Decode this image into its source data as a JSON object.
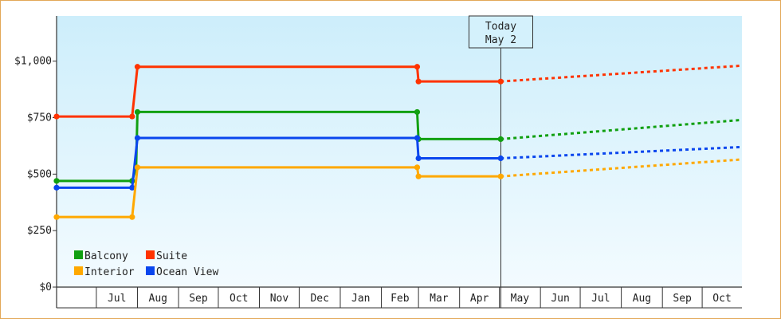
{
  "chart_data": {
    "type": "line",
    "step": true,
    "x_axis": {
      "months": [
        "Jul",
        "Aug",
        "Sep",
        "Oct",
        "Nov",
        "Dec",
        "Jan",
        "Feb",
        "Mar",
        "Apr",
        "May",
        "Jun",
        "Jul",
        "Aug",
        "Sep",
        "Oct"
      ],
      "start": "2024-06-01",
      "end": "2025-10-31"
    },
    "y_axis": {
      "ylim": [
        0,
        1200
      ],
      "ticks": [
        0,
        250,
        500,
        750,
        1000
      ],
      "tick_labels": [
        "$0",
        "$250",
        "$500",
        "$750",
        "$1,000"
      ]
    },
    "today": {
      "line1": "Today",
      "line2": "May 2",
      "date": "2025-05-02"
    },
    "series": [
      {
        "name": "Suite",
        "color": "#ff3300",
        "points": [
          [
            "2024-06-01",
            755
          ],
          [
            "2024-07-28",
            755
          ],
          [
            "2024-08-01",
            975
          ],
          [
            "2025-02-28",
            975
          ],
          [
            "2025-03-01",
            910
          ],
          [
            "2025-05-02",
            910
          ]
        ],
        "forecast": [
          [
            "2025-05-02",
            910
          ],
          [
            "2025-10-31",
            980
          ]
        ]
      },
      {
        "name": "Balcony",
        "color": "#11a011",
        "points": [
          [
            "2024-06-01",
            470
          ],
          [
            "2024-07-28",
            470
          ],
          [
            "2024-07-31",
            530
          ],
          [
            "2024-08-01",
            775
          ],
          [
            "2025-02-28",
            775
          ],
          [
            "2025-03-01",
            655
          ],
          [
            "2025-05-02",
            655
          ]
        ],
        "forecast": [
          [
            "2025-05-02",
            655
          ],
          [
            "2025-10-31",
            740
          ]
        ]
      },
      {
        "name": "Ocean View",
        "color": "#0a46ee",
        "points": [
          [
            "2024-06-01",
            440
          ],
          [
            "2024-07-28",
            440
          ],
          [
            "2024-08-01",
            660
          ],
          [
            "2025-02-28",
            660
          ],
          [
            "2025-03-01",
            570
          ],
          [
            "2025-05-02",
            570
          ]
        ],
        "forecast": [
          [
            "2025-05-02",
            570
          ],
          [
            "2025-10-31",
            620
          ]
        ]
      },
      {
        "name": "Interior",
        "color": "#ffa800",
        "points": [
          [
            "2024-06-01",
            310
          ],
          [
            "2024-07-28",
            310
          ],
          [
            "2024-08-01",
            530
          ],
          [
            "2025-02-28",
            530
          ],
          [
            "2025-03-01",
            490
          ],
          [
            "2025-05-02",
            490
          ]
        ],
        "forecast": [
          [
            "2025-05-02",
            490
          ],
          [
            "2025-10-31",
            565
          ]
        ]
      }
    ],
    "legend": [
      {
        "label": "Balcony",
        "color": "#11a011"
      },
      {
        "label": "Suite",
        "color": "#ff3300"
      },
      {
        "label": "Interior",
        "color": "#ffa800"
      },
      {
        "label": "Ocean View",
        "color": "#0a46ee"
      }
    ],
    "legend_position": "bottom-left",
    "background": {
      "top": "#cdeefb",
      "bottom": "#f3fbff"
    }
  }
}
